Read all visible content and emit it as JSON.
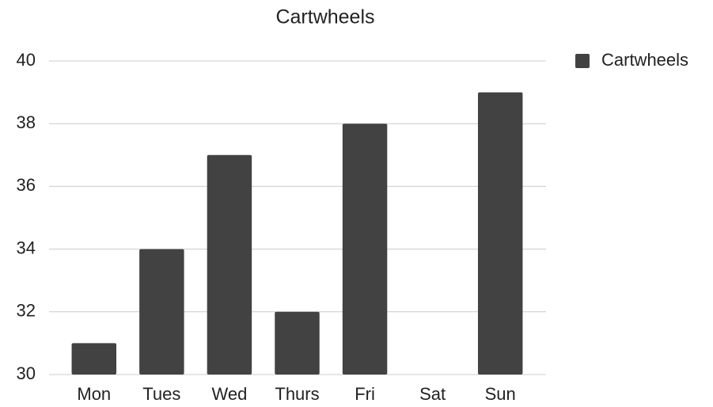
{
  "chart_data": {
    "type": "bar",
    "title": "Cartwheels",
    "categories": [
      "Mon",
      "Tues",
      "Wed",
      "Thurs",
      "Fri",
      "Sat",
      "Sun"
    ],
    "series": [
      {
        "name": "Cartwheels",
        "color": "#424242",
        "values": [
          31,
          34,
          37,
          32,
          38,
          30,
          39
        ]
      }
    ],
    "ylim": [
      30,
      40
    ],
    "yticks": [
      30,
      32,
      34,
      36,
      38,
      40
    ],
    "grid": true,
    "legend": "right"
  }
}
